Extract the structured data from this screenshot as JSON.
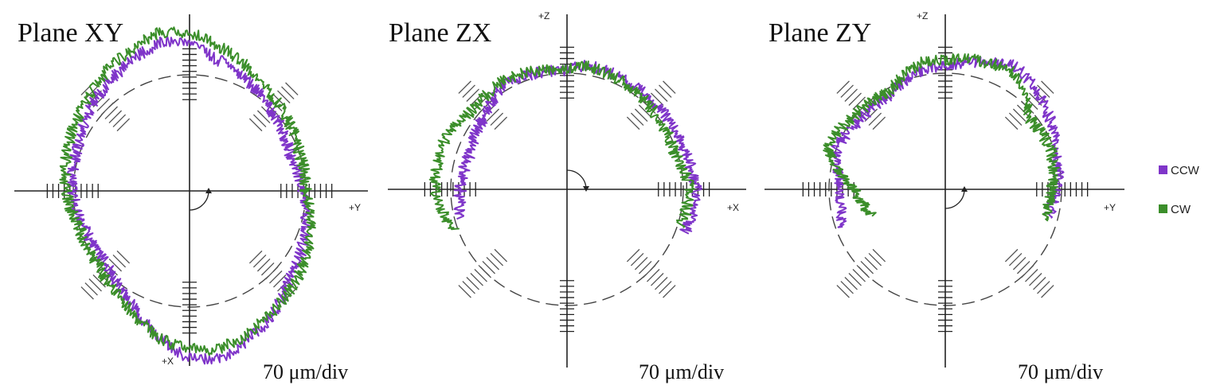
{
  "chart_data": [
    {
      "type": "polar-deviation",
      "title": "Plane XY",
      "scale_label": "70 μm/div",
      "axis_labels": {
        "horizontal": "+Y",
        "vertical": "+X"
      },
      "reference_radius_um": 720,
      "div_um": 70,
      "arrow_direction": "ccw",
      "arc": [
        0,
        360
      ],
      "series": [
        {
          "name": "CCW",
          "color": "#7f35c9",
          "profile": [
            [
              0,
              710
            ],
            [
              20,
              690
            ],
            [
              40,
              710
            ],
            [
              60,
              740
            ],
            [
              80,
              780
            ],
            [
              90,
              820
            ],
            [
              100,
              830
            ],
            [
              120,
              790
            ],
            [
              140,
              760
            ],
            [
              160,
              730
            ],
            [
              180,
              720
            ],
            [
              200,
              705
            ],
            [
              220,
              700
            ],
            [
              240,
              740
            ],
            [
              260,
              830
            ],
            [
              270,
              880
            ],
            [
              280,
              890
            ],
            [
              300,
              830
            ],
            [
              320,
              770
            ],
            [
              340,
              740
            ],
            [
              360,
              710
            ]
          ]
        },
        {
          "name": "CW",
          "color": "#3b8e2a",
          "profile": [
            [
              0,
              720
            ],
            [
              20,
              720
            ],
            [
              40,
              740
            ],
            [
              60,
              770
            ],
            [
              80,
              820
            ],
            [
              90,
              850
            ],
            [
              100,
              860
            ],
            [
              120,
              820
            ],
            [
              140,
              780
            ],
            [
              160,
              760
            ],
            [
              180,
              740
            ],
            [
              200,
              720
            ],
            [
              220,
              725
            ],
            [
              240,
              760
            ],
            [
              260,
              830
            ],
            [
              270,
              850
            ],
            [
              280,
              860
            ],
            [
              300,
              820
            ],
            [
              320,
              790
            ],
            [
              340,
              760
            ],
            [
              360,
              720
            ]
          ]
        }
      ]
    },
    {
      "type": "polar-deviation",
      "title": "Plane ZX",
      "scale_label": "70 μm/div",
      "axis_labels": {
        "horizontal": "+X",
        "vertical": "+Z"
      },
      "reference_radius_um": 720,
      "div_um": 70,
      "arrow_direction": "cw",
      "arc": [
        -20,
        200
      ],
      "series": [
        {
          "name": "CCW",
          "color": "#7f35c9",
          "profile": [
            [
              -20,
              750
            ],
            [
              0,
              760
            ],
            [
              20,
              740
            ],
            [
              40,
              740
            ],
            [
              60,
              740
            ],
            [
              80,
              750
            ],
            [
              90,
              730
            ],
            [
              100,
              730
            ],
            [
              120,
              740
            ],
            [
              140,
              700
            ],
            [
              160,
              680
            ],
            [
              180,
              690
            ],
            [
              195,
              700
            ]
          ]
        },
        {
          "name": "CW",
          "color": "#3b8e2a",
          "profile": [
            [
              -18,
              730
            ],
            [
              0,
              740
            ],
            [
              20,
              710
            ],
            [
              40,
              720
            ],
            [
              60,
              735
            ],
            [
              80,
              745
            ],
            [
              90,
              735
            ],
            [
              100,
              735
            ],
            [
              120,
              750
            ],
            [
              140,
              740
            ],
            [
              160,
              770
            ],
            [
              180,
              770
            ],
            [
              200,
              730
            ]
          ]
        }
      ]
    },
    {
      "type": "polar-deviation",
      "title": "Plane ZY",
      "scale_label": "70 μm/div",
      "axis_labels": {
        "horizontal": "+Y",
        "vertical": "+Z"
      },
      "reference_radius_um": 720,
      "div_um": 70,
      "arrow_direction": "ccw",
      "arc": [
        -20,
        200
      ],
      "series": [
        {
          "name": "CCW",
          "color": "#7f35c9",
          "profile": [
            [
              -15,
              690
            ],
            [
              0,
              700
            ],
            [
              20,
              730
            ],
            [
              40,
              760
            ],
            [
              60,
              800
            ],
            [
              80,
              760
            ],
            [
              90,
              740
            ],
            [
              100,
              740
            ],
            [
              120,
              700
            ],
            [
              140,
              700
            ],
            [
              160,
              720
            ],
            [
              180,
              680
            ],
            [
              200,
              700
            ]
          ]
        },
        {
          "name": "CW",
          "color": "#3b8e2a",
          "profile": [
            [
              -17,
              680
            ],
            [
              0,
              690
            ],
            [
              20,
              710
            ],
            [
              40,
              700
            ],
            [
              60,
              780
            ],
            [
              80,
              770
            ],
            [
              90,
              760
            ],
            [
              100,
              760
            ],
            [
              120,
              710
            ],
            [
              140,
              720
            ],
            [
              160,
              750
            ],
            [
              180,
              640
            ],
            [
              200,
              600
            ]
          ]
        }
      ]
    }
  ],
  "legend": [
    {
      "label": "CCW",
      "color": "#7f35c9"
    },
    {
      "label": "CW",
      "color": "#3b8e2a"
    }
  ]
}
